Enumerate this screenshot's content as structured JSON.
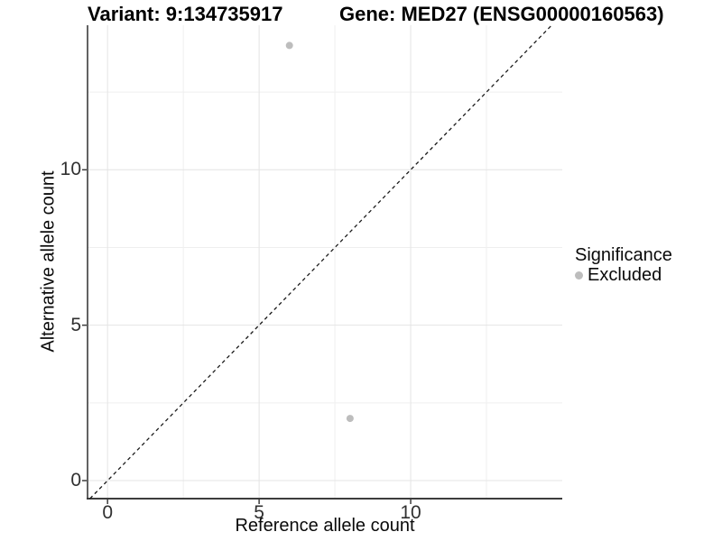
{
  "chart_data": {
    "type": "scatter",
    "titles": [
      "Variant: 9:134735917",
      "Gene: MED27 (ENSG00000160563)"
    ],
    "xlabel": "Reference allele count",
    "ylabel": "Alternative allele count",
    "xlim": [
      -0.66,
      15.0
    ],
    "ylim": [
      -0.58,
      14.65
    ],
    "xticks": [
      0,
      5,
      10
    ],
    "yticks": [
      0,
      5,
      10
    ],
    "xticks_minor": [
      2.5,
      7.5,
      12.5
    ],
    "yticks_minor": [
      2.5,
      7.5,
      12.5
    ],
    "grid": true,
    "series": [
      {
        "name": "Excluded",
        "color": "#bdbdbd",
        "points": [
          {
            "x": 6,
            "y": 14
          },
          {
            "x": 8,
            "y": 2
          }
        ]
      }
    ],
    "reference_line": {
      "slope": 1,
      "intercept": 0,
      "style": "dashed",
      "color": "#1a1a1a"
    },
    "legend": {
      "position": "right",
      "title": "Significance",
      "items": [
        {
          "label": "Excluded",
          "color": "#bdbdbd"
        }
      ]
    },
    "colors": {
      "background": "#ffffff",
      "grid_major": "#e4e4e4",
      "grid_minor": "#efefef",
      "axis_line": "#3c3c3c",
      "tick_text": "#303030",
      "point": "#bdbdbd"
    }
  }
}
